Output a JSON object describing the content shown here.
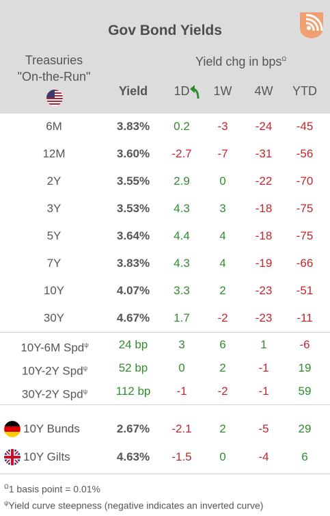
{
  "header": {
    "title": "Gov Bond Yields",
    "treasuries_line1": "Treasuries",
    "treasuries_line2": "\"On-the-Run\"",
    "yield_chg": "Yield chg in bps",
    "yield_chg_sup": "Ω",
    "col_yield": "Yield",
    "col_1d": "1D",
    "col_1w": "1W",
    "col_4w": "4W",
    "col_ytd": "YTD",
    "logo_icon": "signal-logo-icon",
    "flag_icon": "us-flag-icon"
  },
  "treasuries": [
    {
      "label": "6M",
      "yield": "3.83%",
      "d": "0.2",
      "w": "-3",
      "m": "-24",
      "ytd": "-45"
    },
    {
      "label": "12M",
      "yield": "3.60%",
      "d": "-2.7",
      "w": "-7",
      "m": "-31",
      "ytd": "-56"
    },
    {
      "label": "2Y",
      "yield": "3.55%",
      "d": "2.9",
      "w": "0",
      "m": "-22",
      "ytd": "-70"
    },
    {
      "label": "3Y",
      "yield": "3.53%",
      "d": "4.3",
      "w": "3",
      "m": "-18",
      "ytd": "-75"
    },
    {
      "label": "5Y",
      "yield": "3.64%",
      "d": "4.4",
      "w": "4",
      "m": "-18",
      "ytd": "-75"
    },
    {
      "label": "7Y",
      "yield": "3.83%",
      "d": "4.3",
      "w": "4",
      "m": "-19",
      "ytd": "-66"
    },
    {
      "label": "10Y",
      "yield": "4.07%",
      "d": "3.3",
      "w": "2",
      "m": "-23",
      "ytd": "-51"
    },
    {
      "label": "30Y",
      "yield": "4.67%",
      "d": "1.7",
      "w": "-2",
      "m": "-23",
      "ytd": "-11"
    }
  ],
  "spreads": [
    {
      "label": "10Y-6M Spd",
      "sup": "ψ",
      "value": "24 bp",
      "d": "3",
      "w": "6",
      "m": "1",
      "ytd": "-6"
    },
    {
      "label": "10Y-2Y Spd",
      "sup": "ψ",
      "value": "52 bp",
      "d": "0",
      "w": "2",
      "m": "-1",
      "ytd": "19"
    },
    {
      "label": "30Y-2Y Spd",
      "sup": "ψ",
      "value": "112 bp",
      "d": "-1",
      "w": "-2",
      "m": "-1",
      "ytd": "59"
    }
  ],
  "foreign": [
    {
      "label": "10Y Bunds",
      "flag": "germany-flag-icon",
      "yield": "2.67%",
      "d": "-2.1",
      "w": "2",
      "m": "-5",
      "ytd": "29"
    },
    {
      "label": "10Y Gilts",
      "flag": "uk-flag-icon",
      "yield": "4.63%",
      "d": "-1.5",
      "w": "0",
      "m": "-4",
      "ytd": "6"
    }
  ],
  "footnotes": {
    "f1_sup": "Ω",
    "f1": "1 basis point = 0.01%",
    "f2_sup": "ψ",
    "f2": "Yield curve steepness (negative indicates an inverted curve)"
  },
  "colors": {
    "positive": "#2f8c2f",
    "negative": "#c0272d",
    "header_bg": "#dcdcdc",
    "logo": "#f0a070"
  }
}
